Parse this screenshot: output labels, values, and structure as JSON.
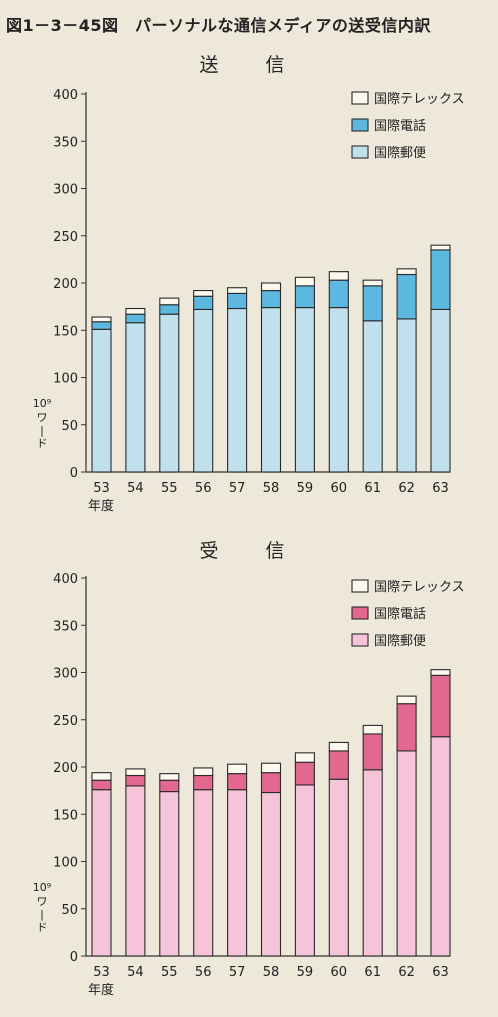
{
  "figure_title": "図1－3－45図　パーソナルな通信メディアの送受信内訳",
  "chart_data": [
    {
      "type": "bar",
      "stacked": true,
      "title": "送　信",
      "categories": [
        "53",
        "54",
        "55",
        "56",
        "57",
        "58",
        "59",
        "60",
        "61",
        "62",
        "63"
      ],
      "xlabel": "年度",
      "ylabel": "10⁹ワード",
      "ylim": [
        0,
        400
      ],
      "yticks": [
        0,
        50,
        100,
        150,
        200,
        250,
        300,
        350,
        400
      ],
      "legend_position": "top-right",
      "series": [
        {
          "name": "国際郵便",
          "color": "#bfe0ec",
          "values": [
            151,
            158,
            167,
            172,
            173,
            174,
            174,
            174,
            160,
            162,
            172
          ]
        },
        {
          "name": "国際電話",
          "color": "#5cb8de",
          "values": [
            8,
            9,
            10,
            14,
            16,
            18,
            23,
            29,
            37,
            47,
            63
          ]
        },
        {
          "name": "国際テレックス",
          "color": "#fbf8ee",
          "values": [
            5,
            6,
            7,
            6,
            6,
            8,
            9,
            9,
            6,
            6,
            5
          ]
        }
      ]
    },
    {
      "type": "bar",
      "stacked": true,
      "title": "受　信",
      "categories": [
        "53",
        "54",
        "55",
        "56",
        "57",
        "58",
        "59",
        "60",
        "61",
        "62",
        "63"
      ],
      "xlabel": "年度",
      "ylabel": "10⁹ワード",
      "ylim": [
        0,
        400
      ],
      "yticks": [
        0,
        50,
        100,
        150,
        200,
        250,
        300,
        350,
        400
      ],
      "legend_position": "top-right",
      "series": [
        {
          "name": "国際郵便",
          "color": "#f5c4d8",
          "values": [
            176,
            180,
            174,
            176,
            176,
            173,
            181,
            187,
            197,
            217,
            232
          ]
        },
        {
          "name": "国際電話",
          "color": "#e2688f",
          "values": [
            10,
            11,
            12,
            15,
            17,
            21,
            24,
            30,
            38,
            50,
            65
          ]
        },
        {
          "name": "国際テレックス",
          "color": "#fbf8ee",
          "values": [
            8,
            7,
            7,
            8,
            10,
            10,
            10,
            9,
            9,
            8,
            6
          ]
        }
      ]
    }
  ]
}
